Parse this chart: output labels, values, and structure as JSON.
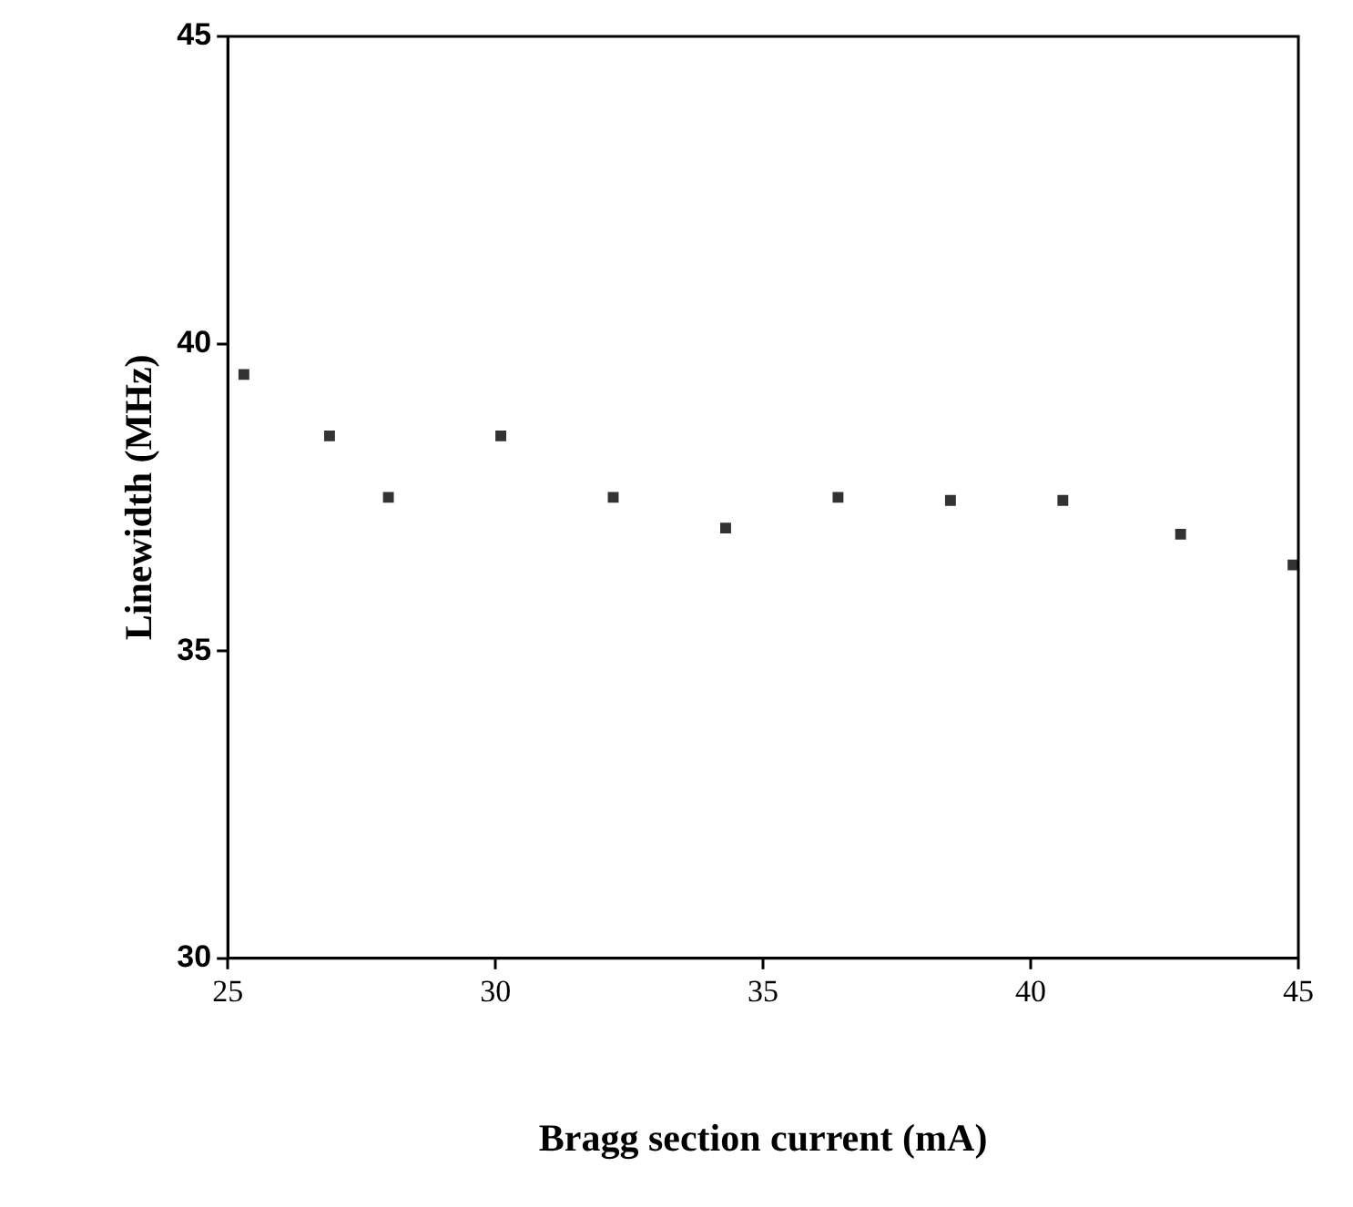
{
  "chart_data": {
    "type": "scatter",
    "xlabel": "Bragg section current (mA)",
    "ylabel": "Linewidth (MHz)",
    "x": [
      25.3,
      26.9,
      28.0,
      30.1,
      32.2,
      34.3,
      36.4,
      38.5,
      40.6,
      42.8,
      44.9
    ],
    "values": [
      39.5,
      38.5,
      37.5,
      38.5,
      37.5,
      37.0,
      37.5,
      37.45,
      37.45,
      36.9,
      36.4
    ],
    "color": "#333333",
    "marker": "square",
    "xlim": [
      25,
      45
    ],
    "xticks": [
      25,
      30,
      35,
      40,
      45
    ],
    "ylim": [
      30,
      45
    ],
    "yticks": [
      30,
      35,
      40,
      45
    ],
    "grid": false,
    "legend": false
  }
}
